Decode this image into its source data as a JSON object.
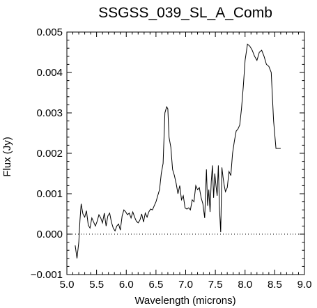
{
  "chart_data": {
    "type": "line",
    "title": "SSGSS_039_SL_A_Comb",
    "xlabel": "Wavelength (microns)",
    "ylabel": "Flux (Jy)",
    "xlim": [
      5.0,
      9.0
    ],
    "ylim": [
      -0.001,
      0.005
    ],
    "xticks": [
      "5.0",
      "5.5",
      "6.0",
      "6.5",
      "7.0",
      "7.5",
      "8.0",
      "8.5",
      "9.0"
    ],
    "yticks": [
      "−0.001",
      "0.000",
      "0.001",
      "0.002",
      "0.003",
      "0.004",
      "0.005"
    ],
    "grid": false,
    "zero_line": true,
    "series": [
      {
        "x": [
          5.14,
          5.17,
          5.2,
          5.22,
          5.24,
          5.27,
          5.3,
          5.33,
          5.36,
          5.39,
          5.42,
          5.45,
          5.48,
          5.51,
          5.54,
          5.57,
          5.6,
          5.63,
          5.66,
          5.69,
          5.72,
          5.75,
          5.78,
          5.81,
          5.84,
          5.87,
          5.9,
          5.93,
          5.96,
          5.99,
          6.02,
          6.05,
          6.08,
          6.11,
          6.14,
          6.17,
          6.2,
          6.23,
          6.26,
          6.29,
          6.32,
          6.35,
          6.38,
          6.41,
          6.44,
          6.47,
          6.5,
          6.53,
          6.56,
          6.59,
          6.62,
          6.65,
          6.68,
          6.7,
          6.72,
          6.75,
          6.78,
          6.81,
          6.84,
          6.87,
          6.9,
          6.93,
          6.96,
          6.99,
          7.02,
          7.05,
          7.08,
          7.11,
          7.14,
          7.17,
          7.2,
          7.23,
          7.26,
          7.29,
          7.32,
          7.35,
          7.37,
          7.39,
          7.41,
          7.43,
          7.45,
          7.47,
          7.49,
          7.51,
          7.53,
          7.55,
          7.57,
          7.59,
          7.61,
          7.63,
          7.65,
          7.67,
          7.7,
          7.73,
          7.76,
          7.79,
          7.82,
          7.85,
          7.88,
          7.91,
          7.94,
          7.97,
          8.0,
          8.04,
          8.08,
          8.12,
          8.16,
          8.2,
          8.24,
          8.28,
          8.32,
          8.36,
          8.4,
          8.44,
          8.48,
          8.52,
          8.56,
          8.6
        ],
        "y": [
          -0.00028,
          -0.0006,
          -0.0002,
          0.00035,
          0.00075,
          0.0005,
          0.00042,
          0.00058,
          0.00022,
          0.00015,
          0.0004,
          0.0003,
          0.0002,
          0.00032,
          0.00048,
          0.0004,
          0.00028,
          0.00052,
          0.0002,
          0.00045,
          0.00052,
          0.0003,
          0.00015,
          8e-05,
          0.0002,
          0.00025,
          0.0001,
          0.00045,
          0.0006,
          0.00055,
          0.00048,
          0.00052,
          0.0004,
          0.00055,
          0.00042,
          0.00032,
          0.00028,
          0.00035,
          0.0005,
          0.0003,
          0.00052,
          0.00042,
          0.00055,
          0.00062,
          0.0006,
          0.0007,
          0.0008,
          0.00095,
          0.0011,
          0.0015,
          0.00175,
          0.003,
          0.00315,
          0.0031,
          0.0024,
          0.00215,
          0.0016,
          0.00145,
          0.00125,
          0.001,
          0.0012,
          0.00085,
          0.00095,
          0.00065,
          0.00062,
          0.00065,
          0.0006,
          0.00085,
          0.0008,
          0.0012,
          0.0011,
          0.00115,
          0.0009,
          0.00075,
          0.0004,
          0.0016,
          0.0007,
          0.0011,
          0.00055,
          0.0013,
          0.0017,
          0.0009,
          0.0015,
          0.0012,
          0.00095,
          0.0017,
          0.0006,
          5e-05,
          0.00165,
          0.0014,
          0.0012,
          0.00105,
          0.00115,
          0.00155,
          0.00145,
          0.002,
          0.0023,
          0.00255,
          0.0026,
          0.0027,
          0.0031,
          0.00365,
          0.0043,
          0.0047,
          0.00465,
          0.00455,
          0.0044,
          0.0043,
          0.0045,
          0.00455,
          0.0044,
          0.0042,
          0.00415,
          0.004,
          0.0028,
          0.00212,
          0.00212,
          0.00212
        ]
      }
    ]
  }
}
